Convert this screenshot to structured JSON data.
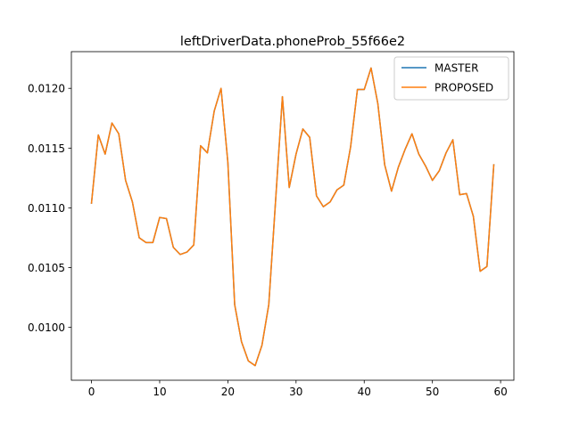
{
  "chart_data": {
    "type": "line",
    "title": "leftDriverData.phoneProb_55f66e2",
    "xlabel": "",
    "ylabel": "",
    "xlim": [
      -2.95,
      61.95
    ],
    "ylim": [
      0.009558,
      0.012307
    ],
    "x_ticks": [
      0,
      10,
      20,
      30,
      40,
      50,
      60
    ],
    "x_tick_labels": [
      "0",
      "10",
      "20",
      "30",
      "40",
      "50",
      "60"
    ],
    "y_ticks": [
      0.01,
      0.0105,
      0.011,
      0.0115,
      0.012
    ],
    "y_tick_labels": [
      "0.0100",
      "0.0105",
      "0.0110",
      "0.0115",
      "0.0120"
    ],
    "grid": false,
    "legend_position": "top-right",
    "x": [
      0,
      1,
      2,
      3,
      4,
      5,
      6,
      7,
      8,
      9,
      10,
      11,
      12,
      13,
      14,
      15,
      16,
      17,
      18,
      19,
      20,
      21,
      22,
      23,
      24,
      25,
      26,
      27,
      28,
      29,
      30,
      31,
      32,
      33,
      34,
      35,
      36,
      37,
      38,
      39,
      40,
      41,
      42,
      43,
      44,
      45,
      46,
      47,
      48,
      49,
      50,
      51,
      52,
      53,
      54,
      55,
      56,
      57,
      58,
      59
    ],
    "series": [
      {
        "name": "MASTER",
        "color": "#1f77b4",
        "values": [
          0.01104,
          0.01161,
          0.01145,
          0.01171,
          0.01162,
          0.01123,
          0.01105,
          0.01075,
          0.01071,
          0.01071,
          0.01092,
          0.01091,
          0.01067,
          0.01061,
          0.01063,
          0.01069,
          0.01152,
          0.01146,
          0.01181,
          0.012,
          0.01138,
          0.01019,
          0.00988,
          0.00972,
          0.00968,
          0.00985,
          0.01019,
          0.01106,
          0.01193,
          0.01117,
          0.01145,
          0.01166,
          0.01159,
          0.0111,
          0.01101,
          0.01105,
          0.01115,
          0.01119,
          0.01151,
          0.01199,
          0.01199,
          0.01217,
          0.01187,
          0.01136,
          0.01114,
          0.01134,
          0.01149,
          0.01162,
          0.01145,
          0.01135,
          0.01123,
          0.01131,
          0.01146,
          0.01157,
          0.01111,
          0.01112,
          0.01093,
          0.01047,
          0.01051,
          0.01136
        ]
      },
      {
        "name": "PROPOSED",
        "color": "#ff7f0e",
        "values": [
          0.01104,
          0.01161,
          0.01145,
          0.01171,
          0.01162,
          0.01123,
          0.01105,
          0.01075,
          0.01071,
          0.01071,
          0.01092,
          0.01091,
          0.01067,
          0.01061,
          0.01063,
          0.01069,
          0.01152,
          0.01146,
          0.01181,
          0.012,
          0.01138,
          0.01019,
          0.00988,
          0.00972,
          0.00968,
          0.00985,
          0.01019,
          0.01106,
          0.01193,
          0.01117,
          0.01145,
          0.01166,
          0.01159,
          0.0111,
          0.01101,
          0.01105,
          0.01115,
          0.01119,
          0.01151,
          0.01199,
          0.01199,
          0.01217,
          0.01187,
          0.01136,
          0.01114,
          0.01134,
          0.01149,
          0.01162,
          0.01145,
          0.01135,
          0.01123,
          0.01131,
          0.01146,
          0.01157,
          0.01111,
          0.01112,
          0.01093,
          0.01047,
          0.01051,
          0.01136
        ]
      }
    ]
  }
}
